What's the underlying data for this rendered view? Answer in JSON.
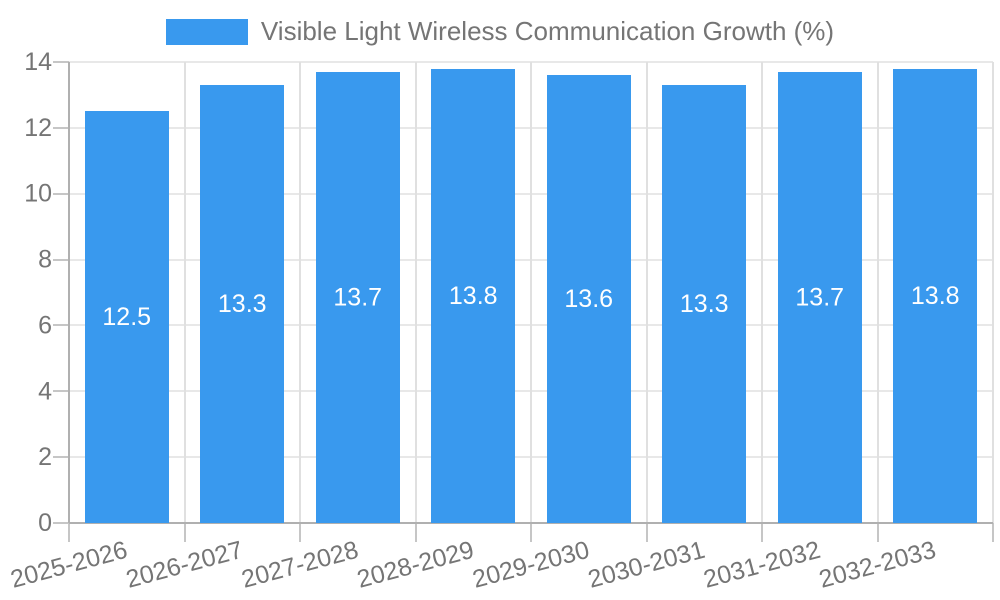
{
  "legend": {
    "label": "Visible Light Wireless Communication Growth (%)",
    "swatch_color": "#3999ee"
  },
  "colors": {
    "bar": "#3999ee",
    "bar_label": "#ffffff",
    "axis_line": "#b0b0b0",
    "tick_line": "#c6c6c6",
    "grid_horizontal": "#e8e8e8",
    "grid_vertical": "#e0e0e0",
    "text": "#757575",
    "background": "#ffffff"
  },
  "chart_data": {
    "type": "bar",
    "title": "Visible Light Wireless Communication Growth (%)",
    "categories": [
      "2025-2026",
      "2026-2027",
      "2027-2028",
      "2028-2029",
      "2029-2030",
      "2030-2031",
      "2031-2032",
      "2032-2033"
    ],
    "values": [
      12.5,
      13.3,
      13.7,
      13.8,
      13.6,
      13.3,
      13.7,
      13.8
    ],
    "value_labels": [
      "12.5",
      "13.3",
      "13.7",
      "13.8",
      "13.6",
      "13.3",
      "13.7",
      "13.8"
    ],
    "series": [
      {
        "name": "Visible Light Wireless Communication Growth (%)",
        "values": [
          12.5,
          13.3,
          13.7,
          13.8,
          13.6,
          13.3,
          13.7,
          13.8
        ]
      }
    ],
    "xlabel": "",
    "ylabel": "",
    "ylim": [
      0,
      14
    ],
    "yticks": [
      0,
      2,
      4,
      6,
      8,
      10,
      12,
      14
    ],
    "grid": true,
    "legend_position": "top",
    "bar_value_labels_shown": true,
    "x_tick_angle_deg": -15
  }
}
